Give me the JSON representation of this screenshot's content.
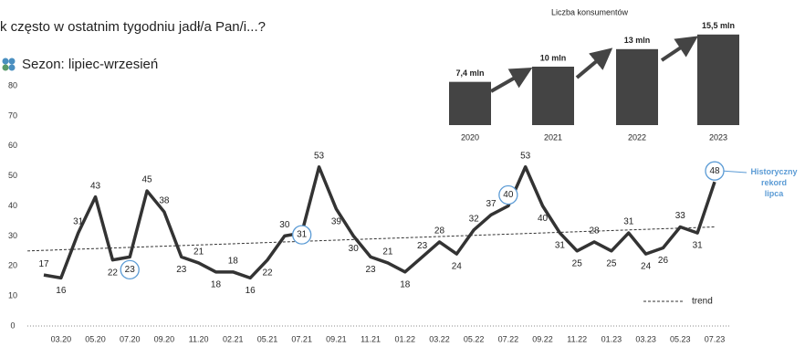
{
  "title": "k często w ostatnim tygodniu jadł/a Pan/i...?",
  "chart_data": [
    {
      "type": "line",
      "subtitle": "Sezon: lipiec-wrzesień",
      "categories": [
        null,
        "03.20",
        null,
        "05.20",
        null,
        "07.20",
        null,
        "09.20",
        null,
        "11.20",
        null,
        "02.21",
        null,
        "05.21",
        null,
        "07.21",
        null,
        "09.21",
        null,
        "11.21",
        null,
        "01.22",
        null,
        "03.22",
        null,
        "05.22",
        null,
        "07.22",
        null,
        "09.22",
        null,
        "11.22",
        null,
        "01.23",
        null,
        "03.23",
        null,
        "05.23",
        null,
        "07.23"
      ],
      "values": [
        17,
        16,
        31,
        43,
        22,
        23,
        45,
        38,
        23,
        21,
        18,
        18,
        16,
        22,
        30,
        31,
        53,
        39,
        30,
        23,
        21,
        18,
        23,
        28,
        24,
        32,
        37,
        40,
        53,
        40,
        31,
        25,
        28,
        25,
        31,
        24,
        26,
        33,
        31,
        48
      ],
      "color": "#333333",
      "ylim": [
        0,
        80
      ],
      "yticks": [
        0,
        10,
        20,
        30,
        40,
        50,
        60,
        70,
        80
      ],
      "trend": {
        "name": "trend",
        "values": [
          25,
          33
        ]
      },
      "annotation": "Historyczny rekord lipca",
      "highlight_color": "#5b9bd5"
    },
    {
      "type": "bar",
      "title": "Liczba konsumentów",
      "categories": [
        "2020",
        "2021",
        "2022",
        "2023"
      ],
      "values": [
        7.4,
        10,
        13,
        15.5
      ],
      "value_labels": [
        "7,4 mln",
        "10 mln",
        "13 mln",
        "15,5 mln"
      ],
      "color": "#444444"
    }
  ]
}
